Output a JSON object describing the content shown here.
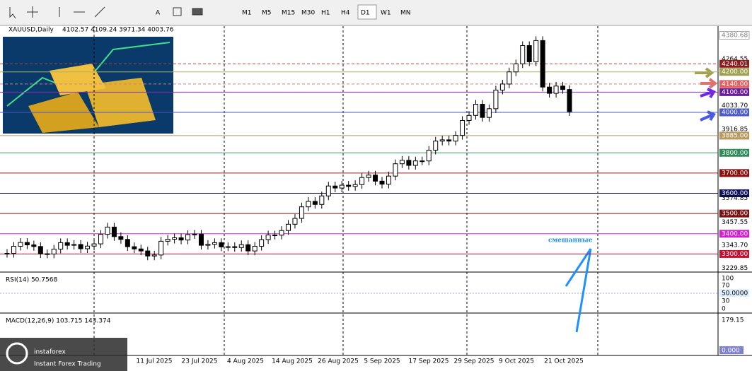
{
  "toolbar": {
    "timeframes": [
      "M1",
      "M5",
      "M15",
      "M30",
      "H1",
      "H4",
      "D1",
      "W1",
      "MN"
    ],
    "active": "D1"
  },
  "header": {
    "symbol": "XAUUSD,Daily",
    "ohlc": "4102.57 4109.24 3971.34 4003.76"
  },
  "price_axis": {
    "range": [
      3229.85,
      4380.68
    ],
    "labels": [
      {
        "value": 4380.68,
        "label": "4380.68",
        "bg": "#ffffff",
        "fg": "#808080"
      },
      {
        "value": 4264.55,
        "label": "4264.55"
      },
      {
        "value": 4240.01,
        "label": "4240.01",
        "bg": "#8b1a1a",
        "fg": "#ffffff",
        "line": "#c04040",
        "dash": true
      },
      {
        "value": 4200,
        "label": "4200.00",
        "bg": "#a0a050",
        "fg": "#ffffff",
        "line": "#b0b060"
      },
      {
        "value": 4140,
        "label": "4140.00",
        "bg": "#e06060",
        "fg": "#ffffff",
        "line": "#d08080",
        "dash": true
      },
      {
        "value": 4100,
        "label": "4100.00",
        "bg": "#6a1a9a",
        "fg": "#ffffff",
        "line": "#8a2aba"
      },
      {
        "value": 4033.7,
        "label": "4033.70"
      },
      {
        "value": 4000,
        "label": "4000.00",
        "bg": "#4a5ac8",
        "fg": "#ffffff",
        "line": "#4a5ac8"
      },
      {
        "value": 3916.85,
        "label": "3916.85"
      },
      {
        "value": 3885,
        "label": "3885.00",
        "bg": "#b89a60",
        "fg": "#ffffff",
        "line": "#b89a60"
      },
      {
        "value": 3800,
        "label": "3800.00",
        "bg": "#2e8b57",
        "fg": "#ffffff",
        "line": "#3a9a60"
      },
      {
        "value": 3700,
        "label": "3700.00",
        "bg": "#8b1010",
        "fg": "#ffffff",
        "line": "#a01818"
      },
      {
        "value": 3600,
        "label": "3600.00",
        "bg": "#101060",
        "fg": "#ffffff",
        "line": "#101060"
      },
      {
        "value": 3574.85,
        "label": "3574.85"
      },
      {
        "value": 3500,
        "label": "3500.00",
        "bg": "#7a1010",
        "fg": "#ffffff",
        "line": "#8b1010"
      },
      {
        "value": 3457.55,
        "label": "3457.55"
      },
      {
        "value": 3400,
        "label": "3400.00",
        "bg": "#d020d0",
        "fg": "#ffffff",
        "line": "#d020d0"
      },
      {
        "value": 3343.7,
        "label": "3343.70"
      },
      {
        "value": 3300,
        "label": "3300.00",
        "bg": "#c01030",
        "fg": "#ffffff",
        "line": "#c01030"
      },
      {
        "value": 3229.85,
        "label": "3229.85"
      }
    ]
  },
  "closes": [
    3303,
    3338,
    3357,
    3345,
    3337,
    3301,
    3300,
    3324,
    3356,
    3343,
    3347,
    3326,
    3339,
    3350,
    3397,
    3433,
    3386,
    3372,
    3336,
    3325,
    3315,
    3290,
    3295,
    3363,
    3373,
    3380,
    3369,
    3396,
    3398,
    3343,
    3348,
    3356,
    3335,
    3336,
    3332,
    3346,
    3315,
    3338,
    3371,
    3394,
    3393,
    3416,
    3447,
    3476,
    3533,
    3560,
    3545,
    3587,
    3636,
    3626,
    3640,
    3634,
    3643,
    3678,
    3690,
    3660,
    3645,
    3685,
    3746,
    3763,
    3738,
    3760,
    3760,
    3813,
    3858,
    3864,
    3858,
    3886,
    3960,
    3985,
    4040,
    3975,
    4018,
    4110,
    4140,
    4200,
    4240,
    4330,
    4250,
    4355,
    4125,
    4094,
    4130,
    4113,
    4003.76
  ],
  "dates": [
    "11 Jul 2025",
    "23 Jul 2025",
    "4 Aug 2025",
    "14 Aug 2025",
    "26 Aug 2025",
    "5 Sep 2025",
    "17 Sep 2025",
    "29 Sep 2025",
    "9 Oct 2025",
    "21 Oct 2025"
  ],
  "rsi": {
    "label": "RSI(14) 50.7568",
    "scale": [
      "100",
      "70",
      "50.0000",
      "30",
      "0"
    ]
  },
  "macd": {
    "label": "MACD(12,26,9) 103.715 143.374",
    "scale": [
      "179.15",
      "0.000"
    ]
  },
  "annotation": "смешанные",
  "logo": {
    "name": "instaforex",
    "tagline": "Instant Forex Trading"
  }
}
